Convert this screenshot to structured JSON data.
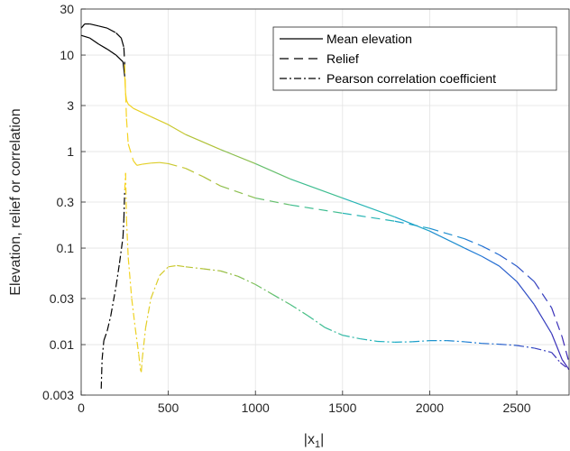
{
  "chart_data": {
    "type": "line",
    "title": "",
    "xlabel_base": "|x",
    "xlabel_sub": "1",
    "xlabel_end": "|",
    "ylabel": "Elevation, relief or correlation",
    "xlim": [
      0,
      2800
    ],
    "ylim": [
      0.003,
      30
    ],
    "yscale": "log",
    "grid": true,
    "legend_position": "top-right",
    "xticks": [
      0,
      500,
      1000,
      1500,
      2000,
      2500
    ],
    "xtick_labels": [
      "0",
      "500",
      "1000",
      "1500",
      "2000",
      "2500"
    ],
    "yticks": [
      0.003,
      0.01,
      0.03,
      0.1,
      0.3,
      1,
      3,
      10,
      30
    ],
    "ytick_labels": [
      "0.003",
      "0.01",
      "0.03",
      "0.1",
      "0.3",
      "1",
      "3",
      "10",
      "30"
    ],
    "series": [
      {
        "name": "Mean elevation",
        "style": "solid",
        "x": [
          0,
          50,
          100,
          150,
          200,
          240,
          250,
          255,
          260,
          270,
          300,
          400,
          500,
          600,
          800,
          1000,
          1200,
          1500,
          1800,
          2000,
          2200,
          2300,
          2400,
          2500,
          2600,
          2700,
          2760,
          2800
        ],
        "y": [
          16,
          15,
          13,
          11.5,
          10,
          8.5,
          6,
          4,
          3.4,
          3.1,
          2.8,
          2.3,
          1.9,
          1.5,
          1.05,
          0.75,
          0.52,
          0.33,
          0.21,
          0.15,
          0.1,
          0.082,
          0.065,
          0.045,
          0.026,
          0.013,
          0.007,
          0.0055
        ]
      },
      {
        "name": "Relief",
        "style": "dashed",
        "x": [
          0,
          20,
          50,
          100,
          150,
          200,
          230,
          245,
          250,
          255,
          260,
          270,
          300,
          320,
          350,
          400,
          450,
          500,
          600,
          700,
          800,
          1000,
          1200,
          1500,
          1800,
          2000,
          2200,
          2300,
          2400,
          2500,
          2600,
          2700,
          2760,
          2800
        ],
        "y": [
          19,
          21,
          21,
          20,
          19,
          17,
          15,
          12,
          8,
          4,
          2.2,
          1.2,
          0.8,
          0.72,
          0.74,
          0.76,
          0.77,
          0.75,
          0.67,
          0.55,
          0.44,
          0.33,
          0.28,
          0.23,
          0.19,
          0.16,
          0.125,
          0.105,
          0.085,
          0.065,
          0.045,
          0.024,
          0.012,
          0.0065
        ]
      },
      {
        "name": "Pearson correlation coefficient",
        "style": "dashdot",
        "x": [
          115,
          120,
          130,
          150,
          170,
          200,
          220,
          240,
          245,
          250,
          255,
          260,
          270,
          290,
          310,
          330,
          340,
          345,
          350,
          370,
          400,
          450,
          500,
          550,
          600,
          700,
          800,
          900,
          1000,
          1100,
          1200,
          1300,
          1400,
          1500,
          1600,
          1700,
          1800,
          1900,
          2000,
          2100,
          2200,
          2300,
          2400,
          2500,
          2600,
          2700,
          2750,
          2800
        ],
        "y": [
          0.0035,
          0.007,
          0.011,
          0.014,
          0.02,
          0.04,
          0.07,
          0.13,
          0.2,
          0.4,
          0.6,
          0.2,
          0.08,
          0.03,
          0.015,
          0.008,
          0.0055,
          0.0052,
          0.007,
          0.015,
          0.03,
          0.052,
          0.064,
          0.066,
          0.064,
          0.061,
          0.058,
          0.051,
          0.042,
          0.033,
          0.026,
          0.02,
          0.015,
          0.0125,
          0.0115,
          0.0108,
          0.0106,
          0.0107,
          0.011,
          0.011,
          0.0107,
          0.0103,
          0.0101,
          0.0098,
          0.0092,
          0.0083,
          0.0065,
          0.0055
        ]
      }
    ],
    "colormap_stops": [
      "#3f26b4",
      "#1f78d6",
      "#1bb0c4",
      "#45bf86",
      "#a7bf3a",
      "#f7d421"
    ],
    "black_segment_end_x": 250
  }
}
